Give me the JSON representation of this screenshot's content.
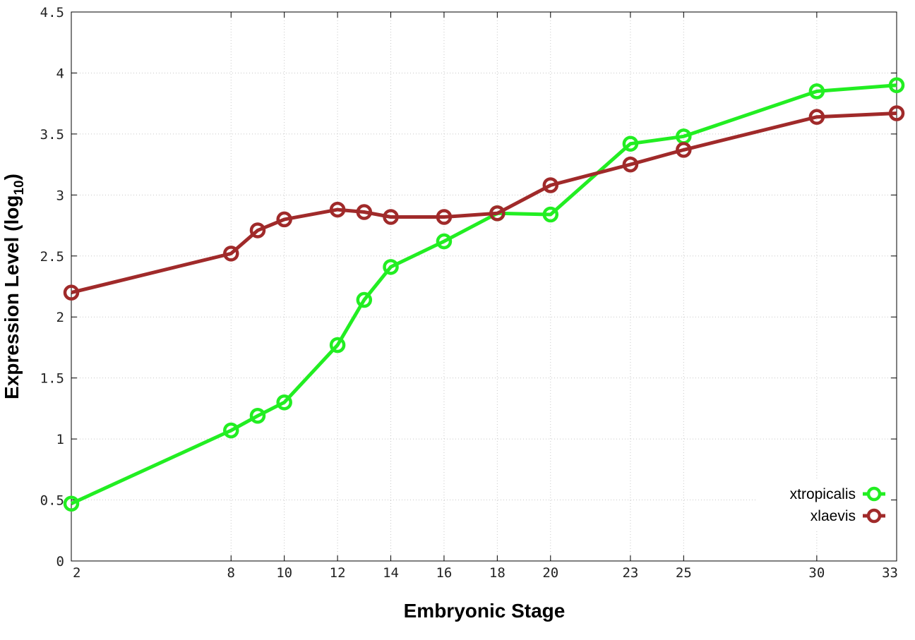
{
  "chart_data": {
    "type": "line",
    "xlabel": "Embryonic Stage",
    "ylabel_main": "Expression Level (log",
    "ylabel_sub": "10",
    "ylabel_close": ")",
    "x": [
      2,
      8,
      9,
      10,
      12,
      13,
      14,
      16,
      18,
      20,
      23,
      25,
      30,
      33
    ],
    "x_ticks": [
      2,
      8,
      10,
      12,
      14,
      16,
      18,
      20,
      23,
      25,
      30,
      33
    ],
    "y_ticks": [
      "0",
      "0.5",
      "1",
      "1.5",
      "2",
      "2.5",
      "3",
      "3.5",
      "4",
      "4.5"
    ],
    "xlim": [
      2,
      33
    ],
    "ylim": [
      0,
      4.5
    ],
    "grid": true,
    "legend_position": "bottom-right",
    "series": [
      {
        "name": "xtropicalis",
        "color": "#22ee22",
        "values": [
          0.47,
          1.07,
          1.19,
          1.3,
          1.77,
          2.14,
          2.41,
          2.62,
          2.85,
          2.84,
          3.42,
          3.48,
          3.85,
          3.9
        ]
      },
      {
        "name": "xlaevis",
        "color": "#a02a2a",
        "values": [
          2.2,
          2.52,
          2.71,
          2.8,
          2.88,
          2.86,
          2.82,
          2.82,
          2.85,
          3.08,
          3.25,
          3.37,
          3.64,
          3.67
        ]
      }
    ]
  }
}
